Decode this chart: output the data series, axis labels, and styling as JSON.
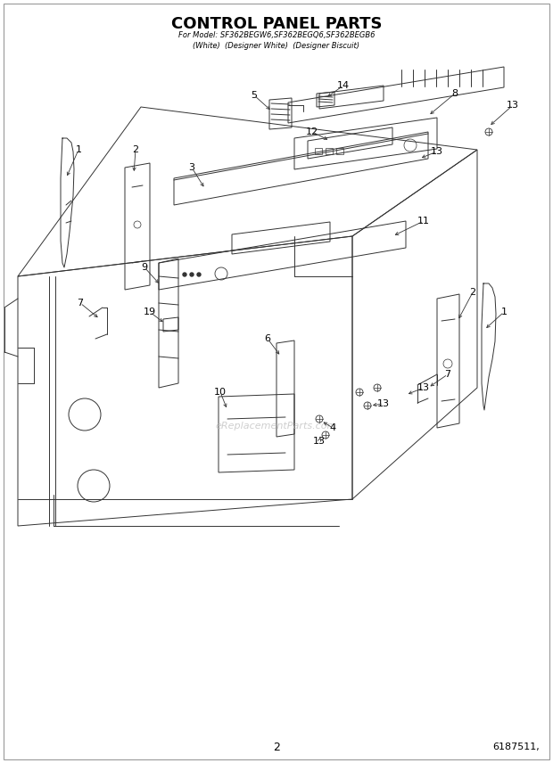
{
  "title": "CONTROL PANEL PARTS",
  "subtitle1": "For Model: SF362BEGW6,SF362BEGQ6,SF362BEGB6",
  "subtitle2": "(White)  (Designer White)  (Designer Biscuit)",
  "page_number": "2",
  "part_number": "6187511,",
  "watermark": "eReplacementParts.com",
  "bg_color": "#ffffff",
  "line_color": "#333333",
  "label_color": "#000000",
  "title_fontsize": 13,
  "subtitle_fontsize": 6,
  "label_fontsize": 8
}
